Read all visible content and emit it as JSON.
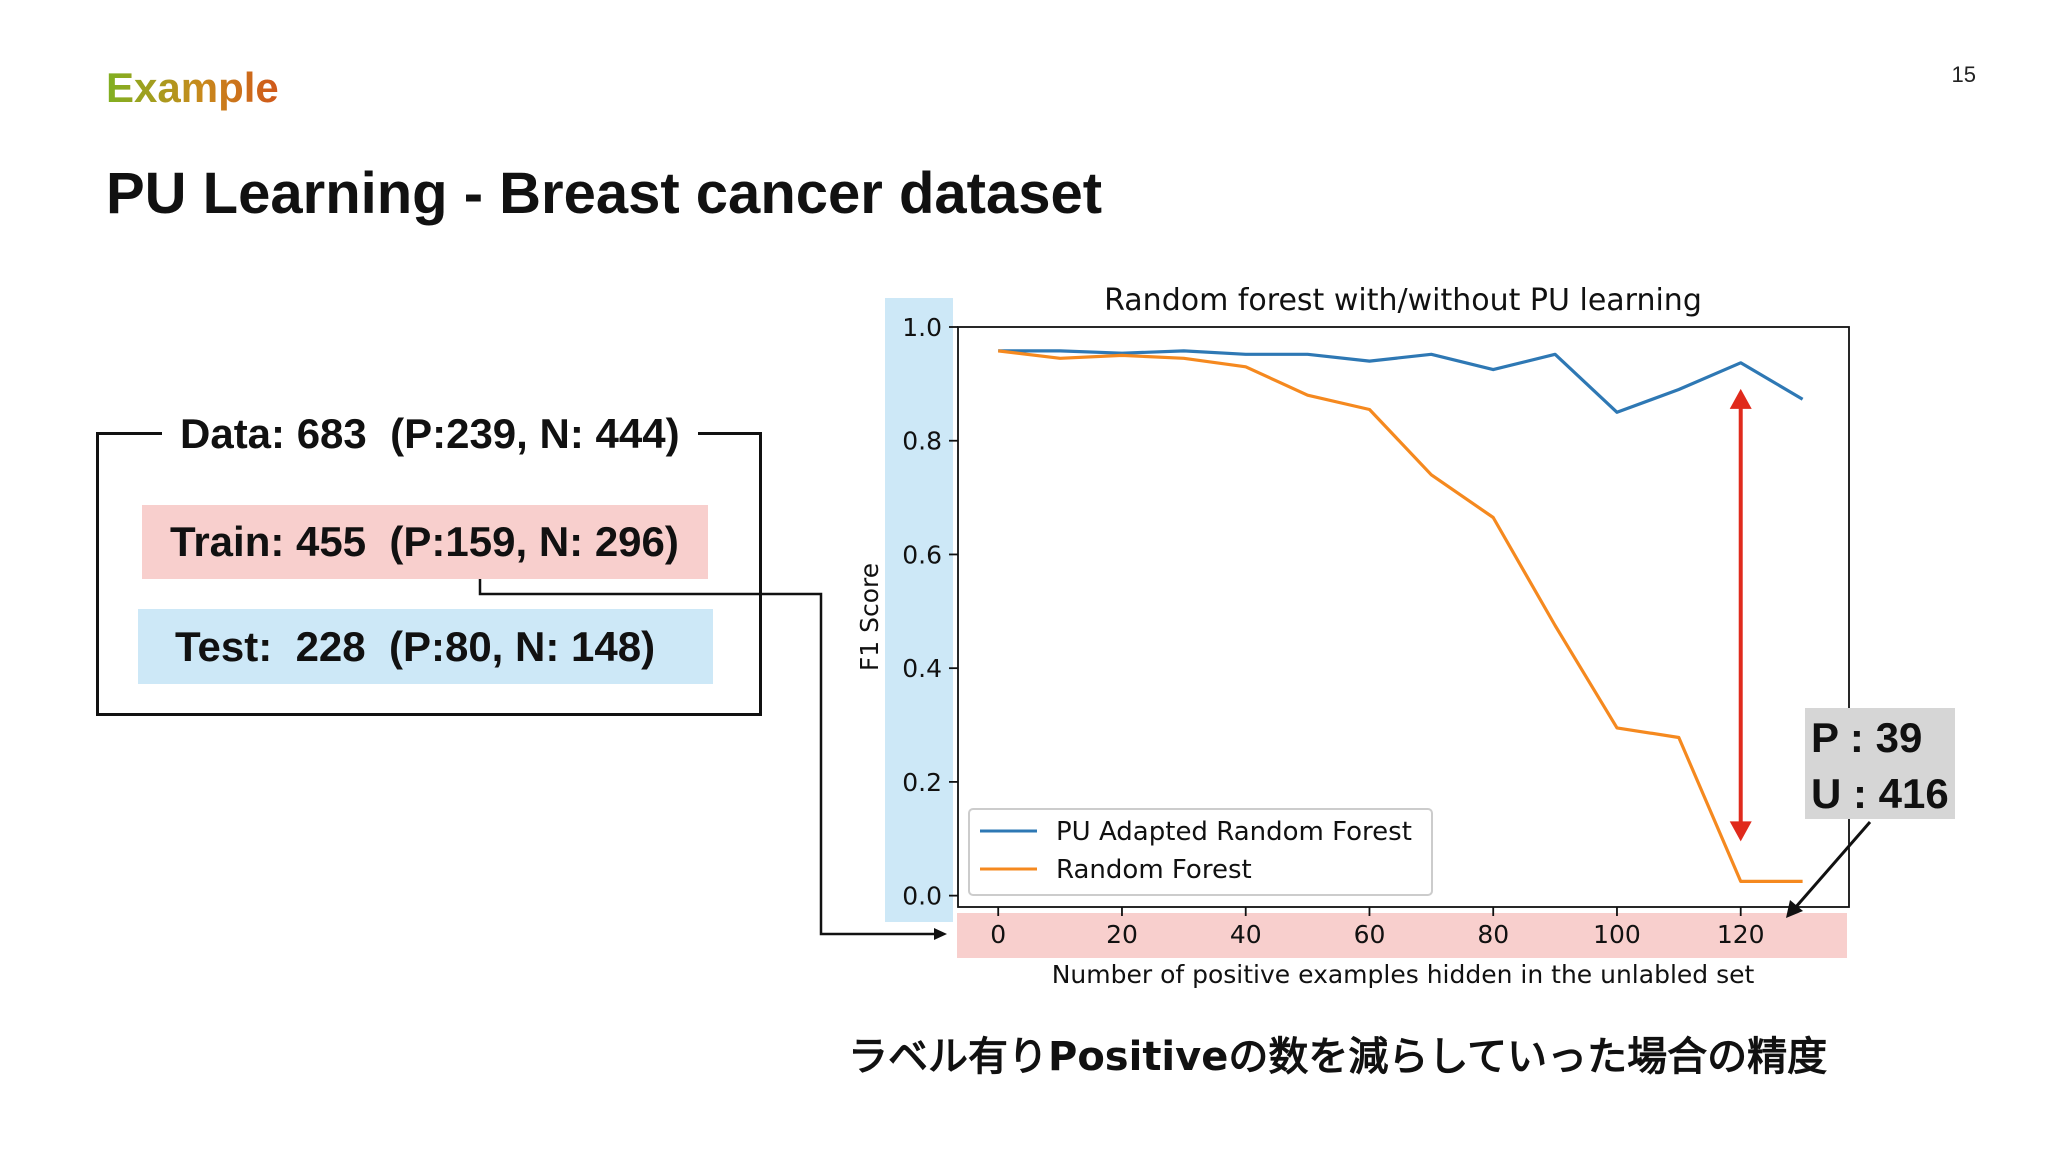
{
  "slide": {
    "number": "15",
    "eyebrow": "Example",
    "title": "PU Learning - Breast cancer dataset",
    "caption": "ラベル有りPositiveの数を減らしていった場合の精度"
  },
  "dataset": {
    "data_label": "Data: 683  (P:239, N: 444)",
    "train_label": "Train: 455  (P:159, N: 296)",
    "test_label": "Test:  228  (P:80, N: 148)"
  },
  "annotation": {
    "p_label": "P : 39",
    "u_label": "U : 416"
  },
  "colors": {
    "pu_series": "#2e78b4",
    "rf_series": "#f5891f",
    "arrow": "#e02a1c",
    "train_bg": "#f8cfcd",
    "test_bg": "#cde8f7"
  },
  "chart_data": {
    "type": "line",
    "title": "Random forest with/without PU learning",
    "xlabel": "Number of positive examples hidden in the unlabled set",
    "ylabel": "F1 Score",
    "xlim": [
      -6.5,
      137.5
    ],
    "ylim": [
      -0.02,
      1.0
    ],
    "xticks": [
      "0",
      "20",
      "40",
      "60",
      "80",
      "100",
      "120"
    ],
    "xtick_values": [
      0,
      20,
      40,
      60,
      80,
      100,
      120
    ],
    "yticks": [
      "0.0",
      "0.2",
      "0.4",
      "0.6",
      "0.8",
      "1.0"
    ],
    "ytick_values": [
      0.0,
      0.2,
      0.4,
      0.6,
      0.8,
      1.0
    ],
    "legend_position": "lower-left",
    "x": [
      0,
      10,
      20,
      30,
      40,
      50,
      60,
      70,
      80,
      90,
      100,
      110,
      120,
      130
    ],
    "series": [
      {
        "name": "PU Adapted Random Forest",
        "color": "#2e78b4",
        "values": [
          0.958,
          0.958,
          0.954,
          0.958,
          0.952,
          0.952,
          0.94,
          0.952,
          0.925,
          0.952,
          0.85,
          0.89,
          0.937,
          0.873
        ]
      },
      {
        "name": "Random Forest",
        "color": "#f5891f",
        "values": [
          0.958,
          0.945,
          0.95,
          0.945,
          0.93,
          0.88,
          0.855,
          0.74,
          0.665,
          0.475,
          0.295,
          0.278,
          0.025,
          0.025
        ]
      }
    ],
    "highlight_gap_x": 120
  }
}
